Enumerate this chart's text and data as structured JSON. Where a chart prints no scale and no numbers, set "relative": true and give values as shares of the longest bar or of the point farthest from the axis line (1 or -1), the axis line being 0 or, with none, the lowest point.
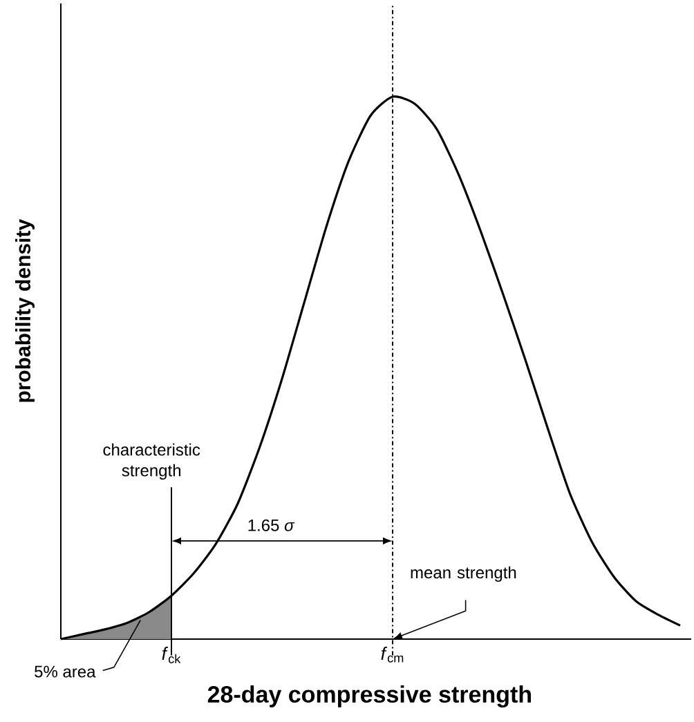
{
  "chart_data": {
    "type": "line",
    "relative": true,
    "xlabel": "28-day compressive strength",
    "ylabel": "probability density",
    "categories": [
      null,
      null,
      null,
      null,
      null,
      "*f*$_{ck}$",
      null,
      null,
      null,
      null,
      null,
      null,
      null,
      null,
      null,
      "*f*$_{cm}$",
      null,
      null,
      null,
      null,
      null,
      null,
      null,
      null,
      null,
      null,
      null,
      null,
      null
    ],
    "series": [
      {
        "type": "area",
        "color": "#8a8a8a",
        "values": [
          0,
          0.009,
          0.018,
          0.03,
          0.05,
          0.08,
          null,
          null,
          null,
          null,
          null,
          null,
          null,
          null,
          null,
          null,
          null,
          null,
          null,
          null,
          null,
          null,
          null,
          null,
          null,
          null,
          null,
          null,
          null
        ]
      },
      {
        "color": "#000000",
        "values": [
          0,
          0.009,
          0.018,
          0.03,
          0.05,
          0.08,
          0.121,
          0.175,
          0.25,
          0.355,
          0.48,
          0.62,
          0.76,
          0.88,
          0.965,
          1,
          0.987,
          0.94,
          0.855,
          0.75,
          0.635,
          0.515,
          0.39,
          0.27,
          0.18,
          0.115,
          0.07,
          0.045,
          0.025
        ]
      }
    ],
    "ref_lines": [
      {
        "axis": "x",
        "value": "*f*$_{ck}$",
        "label": "characteristic strength",
        "line_style": "solid",
        "color": "#000000"
      },
      {
        "axis": "x",
        "value": "*f*$_{cm}$",
        "line_style": "dashdot",
        "color": "#000000"
      }
    ],
    "annotations": [
      "1.65 *σ*",
      "mean strength",
      "5% area"
    ]
  }
}
